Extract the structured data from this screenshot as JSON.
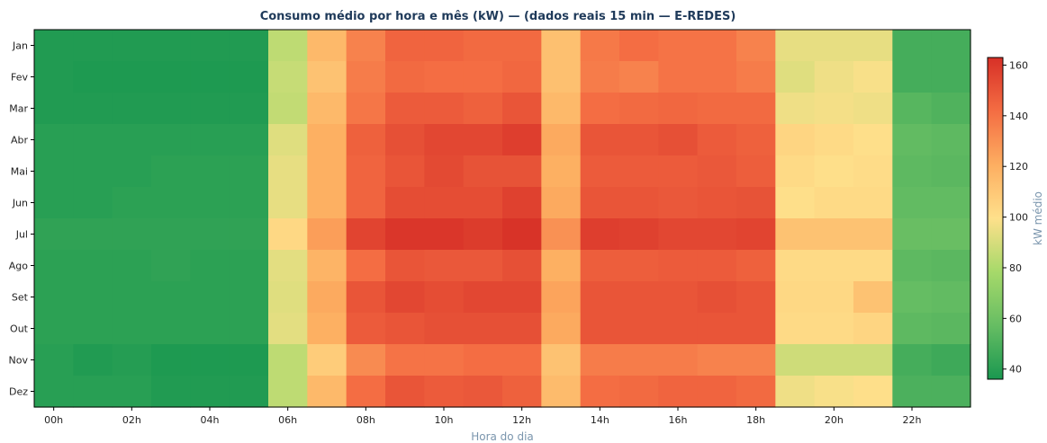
{
  "chart_data": {
    "type": "heatmap",
    "title": "Consumo médio por hora e mês (kW)  —  (dados reais 15 min — E-REDES)",
    "xlabel": "Hora do dia",
    "ylabel": "",
    "colorbar_label": "kW médio",
    "x_tick_labels": [
      "00h",
      "02h",
      "04h",
      "06h",
      "08h",
      "10h",
      "12h",
      "14h",
      "16h",
      "18h",
      "20h",
      "22h"
    ],
    "x_tick_hours": [
      0,
      2,
      4,
      6,
      8,
      10,
      12,
      14,
      16,
      18,
      20,
      22
    ],
    "hours": [
      0,
      1,
      2,
      3,
      4,
      5,
      6,
      7,
      8,
      9,
      10,
      11,
      12,
      13,
      14,
      15,
      16,
      17,
      18,
      19,
      20,
      21,
      22,
      23
    ],
    "months": [
      "Jan",
      "Fev",
      "Mar",
      "Abr",
      "Mai",
      "Jun",
      "Jul",
      "Ago",
      "Set",
      "Out",
      "Nov",
      "Dez"
    ],
    "colorbar_ticks": [
      40,
      60,
      80,
      100,
      120,
      140,
      160
    ],
    "zlim": [
      36,
      163
    ],
    "colorscale": [
      "#1a9850",
      "#66bd63",
      "#a6d96a",
      "#fee08b",
      "#fdae61",
      "#f46d43",
      "#d73027"
    ],
    "grid": false,
    "values": [
      [
        38,
        38,
        38,
        38,
        38,
        38,
        84,
        116,
        135,
        145,
        145,
        143,
        143,
        113,
        138,
        142,
        140,
        140,
        135,
        94,
        94,
        94,
        48,
        48
      ],
      [
        38,
        37,
        37,
        37,
        37,
        37,
        86,
        112,
        137,
        143,
        142,
        142,
        144,
        113,
        137,
        135,
        140,
        140,
        137,
        92,
        96,
        98,
        48,
        48
      ],
      [
        38,
        38,
        38,
        38,
        38,
        38,
        85,
        116,
        139,
        148,
        148,
        146,
        150,
        116,
        142,
        143,
        144,
        143,
        143,
        96,
        97,
        96,
        53,
        51
      ],
      [
        40,
        40,
        40,
        40,
        40,
        40,
        92,
        120,
        146,
        152,
        155,
        155,
        158,
        122,
        150,
        150,
        152,
        148,
        146,
        104,
        102,
        100,
        56,
        55
      ],
      [
        40,
        40,
        40,
        41,
        41,
        41,
        94,
        120,
        145,
        150,
        154,
        151,
        151,
        120,
        148,
        148,
        148,
        149,
        147,
        102,
        100,
        101,
        55,
        54
      ],
      [
        40,
        40,
        41,
        41,
        41,
        41,
        94,
        120,
        145,
        153,
        153,
        153,
        157,
        122,
        150,
        150,
        149,
        150,
        151,
        100,
        102,
        102,
        56,
        56
      ],
      [
        42,
        42,
        42,
        42,
        42,
        42,
        103,
        126,
        156,
        161,
        161,
        159,
        162,
        130,
        158,
        157,
        155,
        155,
        156,
        112,
        112,
        112,
        58,
        58
      ],
      [
        41,
        41,
        41,
        42,
        41,
        41,
        93,
        118,
        142,
        150,
        149,
        149,
        152,
        120,
        147,
        147,
        148,
        148,
        146,
        102,
        102,
        102,
        55,
        54
      ],
      [
        41,
        41,
        41,
        41,
        41,
        41,
        92,
        122,
        150,
        155,
        153,
        155,
        155,
        124,
        150,
        150,
        150,
        152,
        150,
        103,
        103,
        112,
        57,
        56
      ],
      [
        41,
        41,
        41,
        41,
        41,
        41,
        93,
        120,
        148,
        150,
        152,
        152,
        152,
        122,
        150,
        150,
        150,
        150,
        150,
        102,
        102,
        104,
        55,
        54
      ],
      [
        40,
        38,
        39,
        37,
        37,
        37,
        84,
        108,
        132,
        140,
        140,
        142,
        142,
        112,
        137,
        137,
        137,
        135,
        135,
        88,
        88,
        88,
        48,
        46
      ],
      [
        40,
        40,
        40,
        38,
        38,
        38,
        84,
        116,
        142,
        150,
        148,
        149,
        146,
        115,
        142,
        143,
        145,
        145,
        143,
        96,
        98,
        100,
        50,
        50
      ]
    ]
  }
}
